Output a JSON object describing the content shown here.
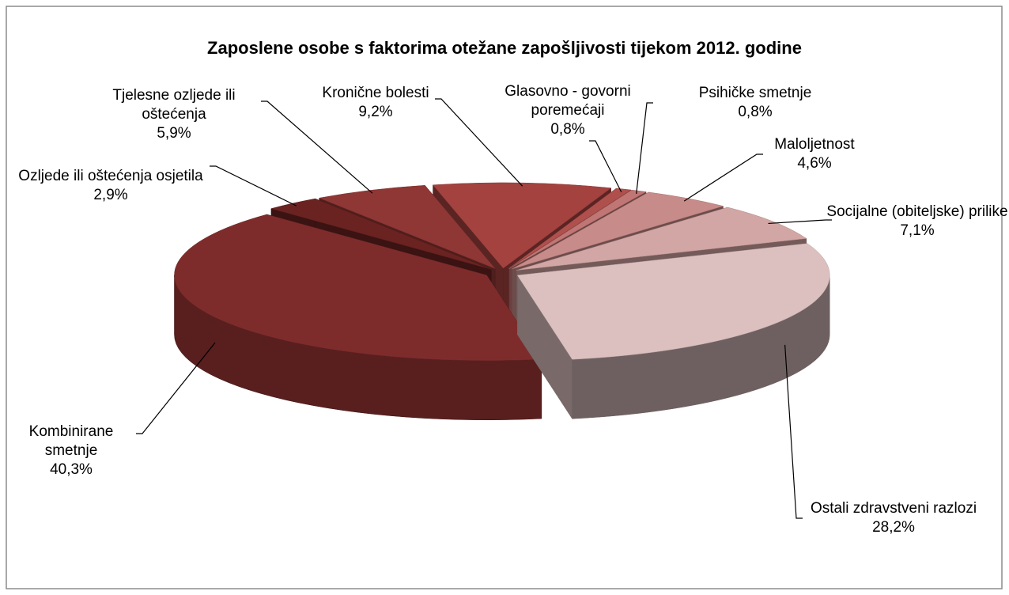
{
  "chart_data": {
    "type": "pie3d",
    "title": "Zaposlene osobe s faktorima otežane zapošljivosti tijekom 2012. godine",
    "categories": [
      "Kronične bolesti",
      "Glasovno - govorni poremećaji",
      "Psihičke smetnje",
      "Maloljetnost",
      "Socijalne (obiteljske) prilike",
      "Ostali zdravstveni razlozi",
      "Kombinirane smetnje",
      "Ozljede ili oštećenja osjetila",
      "Tjelesne ozljede ili oštećenja"
    ],
    "values": [
      9.2,
      0.8,
      0.8,
      4.6,
      7.1,
      28.2,
      40.3,
      2.9,
      5.9
    ],
    "value_labels": [
      "9,2%",
      "0,8%",
      "0,8%",
      "4,6%",
      "7,1%",
      "28,2%",
      "40,3%",
      "2,9%",
      "5,9%"
    ],
    "colors": [
      "#a3423f",
      "#b0504d",
      "#c07674",
      "#c78b89",
      "#d2a6a4",
      "#dcc0bf",
      "#7e2c2b",
      "#6a2321",
      "#8f3735"
    ]
  }
}
